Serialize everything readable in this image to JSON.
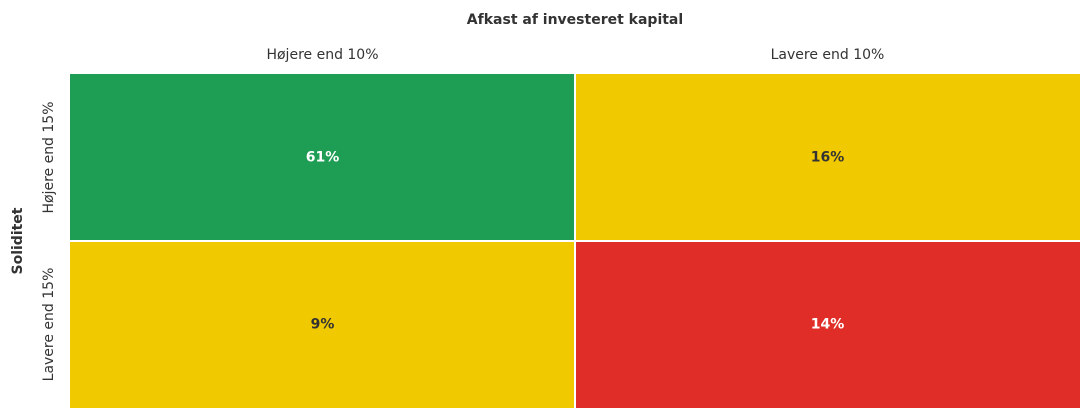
{
  "chart_data": {
    "type": "heatmap",
    "x_label": "Afkast af investeret kapital",
    "y_label": "Soliditet",
    "x_categories": [
      "Højere end 10%",
      "Lavere end 10%"
    ],
    "y_categories": [
      "Højere end 15%",
      "Lavere end 15%"
    ],
    "values": [
      [
        61,
        16
      ],
      [
        9,
        14
      ]
    ],
    "value_labels": [
      [
        "61%",
        "16%"
      ],
      [
        "9%",
        "14%"
      ]
    ],
    "colors": [
      [
        "#1e9e55",
        "#f0c900"
      ],
      [
        "#f0c900",
        "#e02d27"
      ]
    ]
  }
}
